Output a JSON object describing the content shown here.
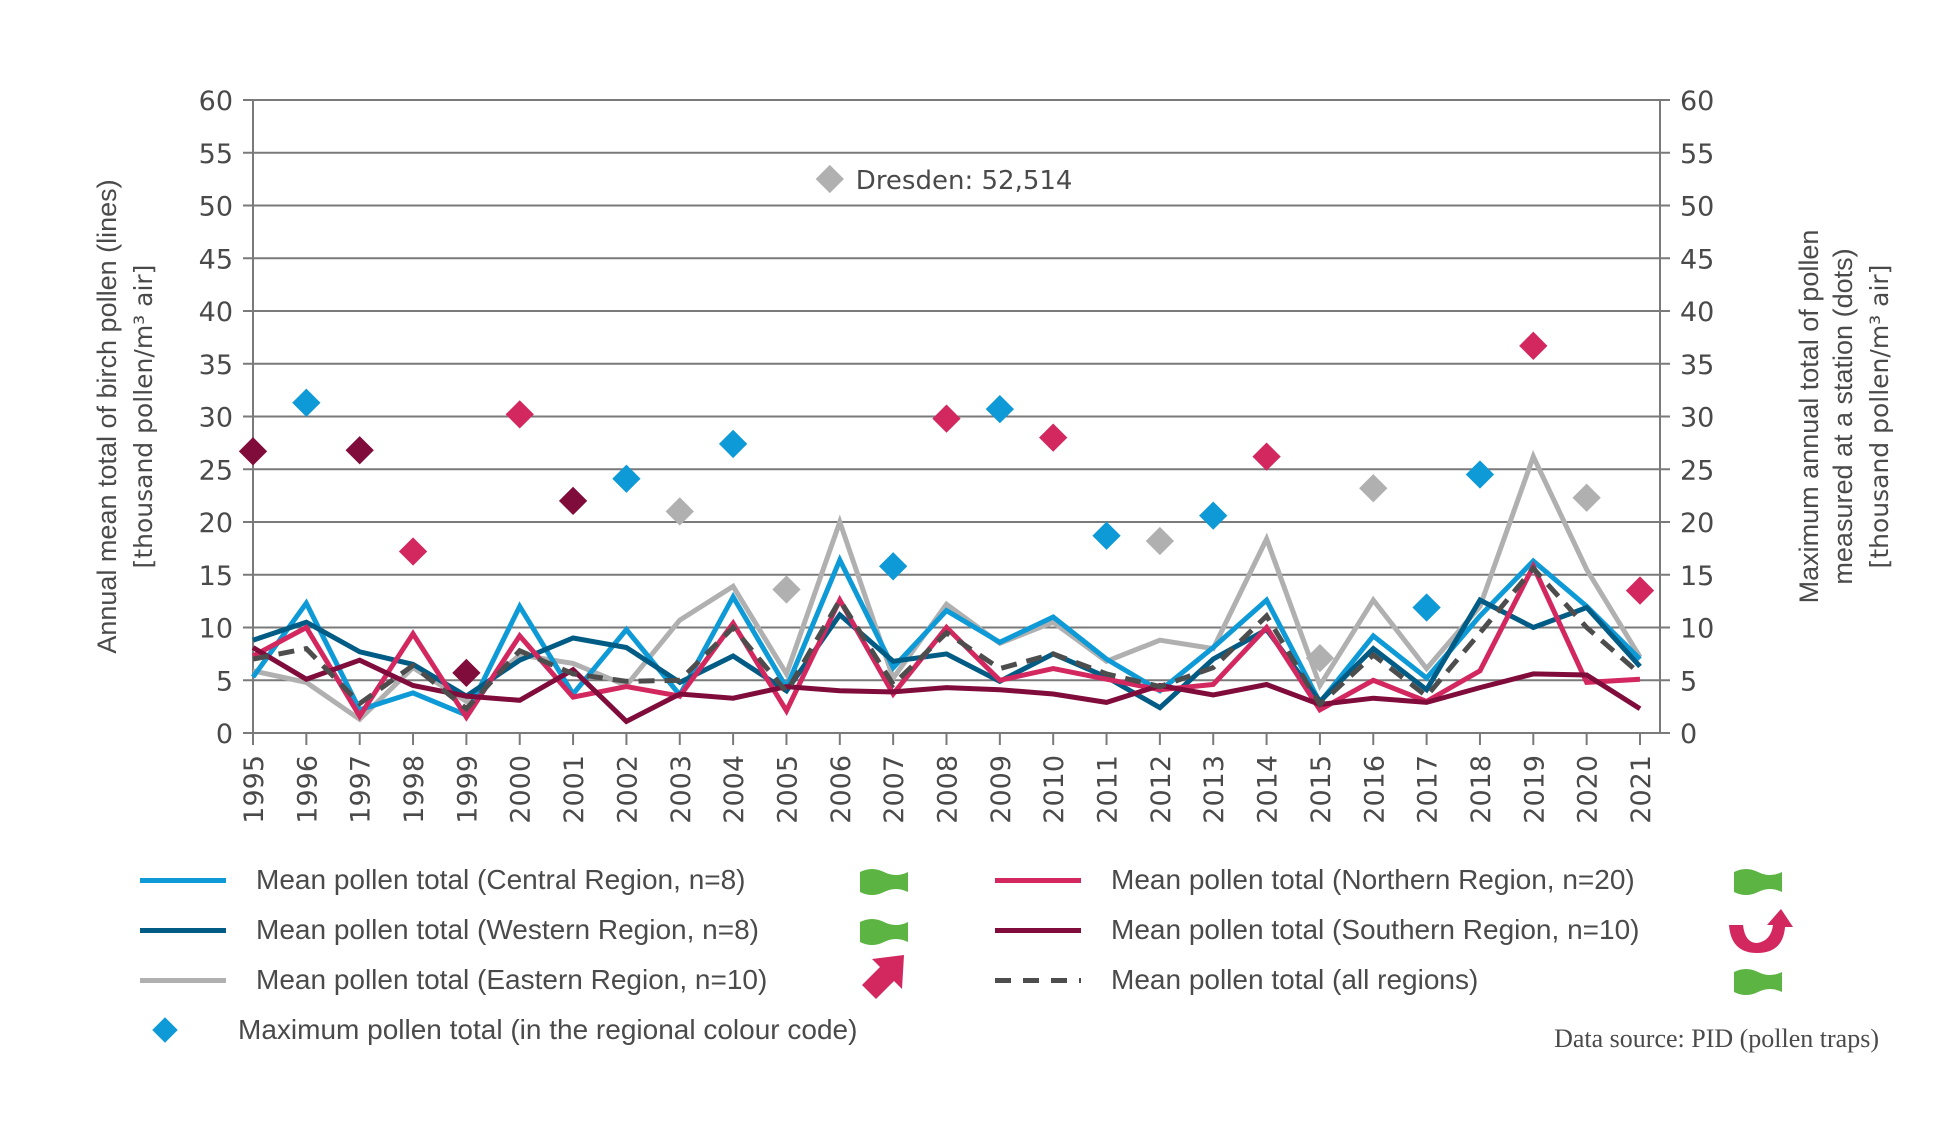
{
  "chart_data": {
    "type": "line",
    "title": "",
    "xlabel": "",
    "ylabel": "Annual mean total of birch pollen (lines) [thousand pollen/m³ air]",
    "ylabel_left_line1": "Annual mean total of birch pollen (lines)",
    "ylabel_left_line2": "[thousand pollen/m³ air]",
    "ylabel_right_line1": "Maximum annual total of pollen",
    "ylabel_right_line2": "measured at a station (dots)",
    "ylabel_right_line3": "[thousand pollen/m³ air]",
    "ylim": [
      0,
      60
    ],
    "y_ticks": [
      0,
      5,
      10,
      15,
      20,
      25,
      30,
      35,
      40,
      45,
      50,
      55,
      60
    ],
    "grid": true,
    "categories": [
      "1995",
      "1996",
      "1997",
      "1998",
      "1999",
      "2000",
      "2001",
      "2002",
      "2003",
      "2004",
      "2005",
      "2006",
      "2007",
      "2008",
      "2009",
      "2010",
      "2011",
      "2012",
      "2013",
      "2014",
      "2015",
      "2016",
      "2017",
      "2018",
      "2019",
      "2020",
      "2021"
    ],
    "series": [
      {
        "name": "Mean pollen total (Central Region, n=8)",
        "color": "#0d9ad6",
        "dash": false,
        "trend": "approx",
        "values": [
          5.3,
          12.3,
          2.2,
          3.8,
          1.7,
          12.0,
          3.7,
          9.8,
          3.6,
          12.9,
          4.3,
          16.4,
          6.2,
          11.6,
          8.6,
          11.0,
          7.0,
          4.0,
          8.1,
          12.6,
          2.9,
          9.2,
          5.2,
          11.1,
          16.3,
          12.0,
          7.0
        ]
      },
      {
        "name": "Mean pollen total (Western Region, n=8)",
        "color": "#005c85",
        "dash": false,
        "trend": "approx",
        "values": [
          8.8,
          10.5,
          7.7,
          6.5,
          3.5,
          6.9,
          9.0,
          8.1,
          4.8,
          7.3,
          4.0,
          11.2,
          6.8,
          7.5,
          4.9,
          7.5,
          5.3,
          2.4,
          7.0,
          9.8,
          3.0,
          8.0,
          4.1,
          12.6,
          10.0,
          11.9,
          6.3
        ]
      },
      {
        "name": "Mean pollen total (Eastern Region, n=10)",
        "color": "#b0b0b0",
        "dash": false,
        "trend": "up",
        "values": [
          5.9,
          4.8,
          1.3,
          6.2,
          3.0,
          7.4,
          6.6,
          4.5,
          10.7,
          13.9,
          5.6,
          20.0,
          5.2,
          12.2,
          8.5,
          10.5,
          6.8,
          8.8,
          8.0,
          18.4,
          4.5,
          12.6,
          6.1,
          12.0,
          26.2,
          15.5,
          7.2
        ]
      },
      {
        "name": "Mean pollen total (Northern Region, n=20)",
        "color": "#d2285f",
        "dash": false,
        "trend": "approx",
        "values": [
          7.3,
          10.0,
          1.6,
          9.4,
          1.5,
          9.2,
          3.4,
          4.4,
          3.5,
          10.4,
          2.1,
          12.6,
          3.7,
          10.0,
          5.0,
          6.1,
          5.1,
          4.1,
          4.6,
          10.0,
          2.2,
          5.0,
          3.0,
          5.9,
          15.8,
          4.8,
          5.1
        ]
      },
      {
        "name": "Mean pollen total (Southern Region, n=10)",
        "color": "#800c3c",
        "dash": false,
        "trend": "u-turn-up",
        "values": [
          8.1,
          5.1,
          6.9,
          4.5,
          3.5,
          3.1,
          6.0,
          1.1,
          3.7,
          3.3,
          4.4,
          4.0,
          3.9,
          4.3,
          4.1,
          3.7,
          2.9,
          4.5,
          3.6,
          4.6,
          2.7,
          3.3,
          2.9,
          4.3,
          5.6,
          5.5,
          2.3
        ]
      },
      {
        "name": "Mean pollen total (all regions)",
        "color": "#4d4d4d",
        "dash": true,
        "trend": "approx",
        "values": [
          7.0,
          8.0,
          2.8,
          6.4,
          2.3,
          7.8,
          5.6,
          4.9,
          5.0,
          10.0,
          3.9,
          12.6,
          4.6,
          9.5,
          6.1,
          7.5,
          5.6,
          4.4,
          6.2,
          11.1,
          2.7,
          7.4,
          3.5,
          9.5,
          15.6,
          10.0,
          5.6
        ]
      }
    ],
    "max_points": [
      {
        "year": "1995",
        "value": 26.7,
        "region": "Southern",
        "color": "#800c3c"
      },
      {
        "year": "1996",
        "value": 31.3,
        "region": "Central",
        "color": "#0d9ad6"
      },
      {
        "year": "1997",
        "value": 26.8,
        "region": "Southern",
        "color": "#800c3c"
      },
      {
        "year": "1998",
        "value": 17.2,
        "region": "Northern",
        "color": "#d2285f"
      },
      {
        "year": "1999",
        "value": 5.7,
        "region": "Southern",
        "color": "#800c3c"
      },
      {
        "year": "2000",
        "value": 30.2,
        "region": "Northern",
        "color": "#d2285f"
      },
      {
        "year": "2001",
        "value": 22.0,
        "region": "Southern",
        "color": "#800c3c"
      },
      {
        "year": "2002",
        "value": 24.1,
        "region": "Central",
        "color": "#0d9ad6"
      },
      {
        "year": "2003",
        "value": 21.0,
        "region": "Eastern",
        "color": "#b0b0b0"
      },
      {
        "year": "2004",
        "value": 27.4,
        "region": "Central",
        "color": "#0d9ad6"
      },
      {
        "year": "2005",
        "value": 13.6,
        "region": "Eastern",
        "color": "#b0b0b0"
      },
      {
        "year": "2007",
        "value": 15.8,
        "region": "Central",
        "color": "#0d9ad6"
      },
      {
        "year": "2008",
        "value": 29.8,
        "region": "Northern",
        "color": "#d2285f"
      },
      {
        "year": "2009",
        "value": 30.7,
        "region": "Central",
        "color": "#0d9ad6"
      },
      {
        "year": "2010",
        "value": 28.0,
        "region": "Northern",
        "color": "#d2285f"
      },
      {
        "year": "2011",
        "value": 18.7,
        "region": "Central",
        "color": "#0d9ad6"
      },
      {
        "year": "2012",
        "value": 18.2,
        "region": "Eastern",
        "color": "#b0b0b0"
      },
      {
        "year": "2013",
        "value": 20.6,
        "region": "Central",
        "color": "#0d9ad6"
      },
      {
        "year": "2014",
        "value": 26.2,
        "region": "Northern",
        "color": "#d2285f"
      },
      {
        "year": "2015",
        "value": 7.1,
        "region": "Eastern",
        "color": "#b0b0b0"
      },
      {
        "year": "2016",
        "value": 23.2,
        "region": "Eastern",
        "color": "#b0b0b0"
      },
      {
        "year": "2017",
        "value": 11.9,
        "region": "Central",
        "color": "#0d9ad6"
      },
      {
        "year": "2018",
        "value": 24.5,
        "region": "Central",
        "color": "#0d9ad6"
      },
      {
        "year": "2019",
        "value": 36.7,
        "region": "Northern",
        "color": "#d2285f"
      },
      {
        "year": "2020",
        "value": 22.3,
        "region": "Eastern",
        "color": "#b0b0b0"
      },
      {
        "year": "2021",
        "value": 13.5,
        "region": "Northern",
        "color": "#d2285f"
      }
    ],
    "annotation": {
      "text": "Dresden: 52,514",
      "year": "2006",
      "value": 52.514,
      "color": "#b0b0b0"
    },
    "legend_position": "bottom",
    "max_legend_label": "Maximum pollen total (in the regional colour code)",
    "max_legend_color": "#0d9ad6"
  },
  "trend_colors": {
    "approx": "#5cb443",
    "up": "#d2285f"
  },
  "source": "Data source: PID (pollen traps)"
}
